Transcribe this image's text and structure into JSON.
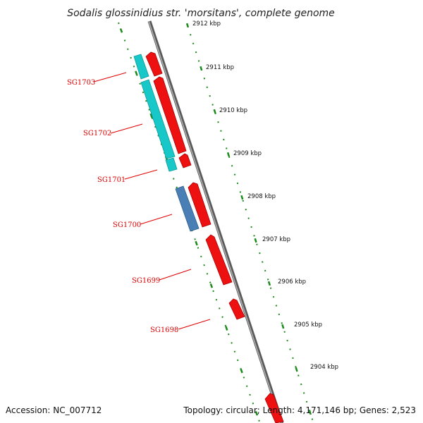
{
  "title": "Sodalis glossinidius str. 'morsitans', complete genome",
  "footer": {
    "accession": "Accession: NC_007712",
    "summary": "Topology: circular; Length: 4,171,146 bp; Genes: 2,523"
  },
  "colors": {
    "backbone": "#7a7a7a",
    "tick": "#1a8a1a",
    "forward_gene": "#ee1111",
    "reverse_gene": "#11cccc",
    "reverse_gene_alt": "#4a7fb5",
    "label_line": "#e00000"
  },
  "kbp_ticks": [
    {
      "label": "2912 kbp"
    },
    {
      "label": "2911 kbp"
    },
    {
      "label": "2910 kbp"
    },
    {
      "label": "2909 kbp"
    },
    {
      "label": "2908 kbp"
    },
    {
      "label": "2907 kbp"
    },
    {
      "label": "2906 kbp"
    },
    {
      "label": "2905 kbp"
    },
    {
      "label": "2904 kbp"
    }
  ],
  "gene_labels": [
    {
      "name": "SG1703"
    },
    {
      "name": "SG1702"
    },
    {
      "name": "SG1701"
    },
    {
      "name": "SG1700"
    },
    {
      "name": "SG1699"
    },
    {
      "name": "SG1698"
    }
  ]
}
